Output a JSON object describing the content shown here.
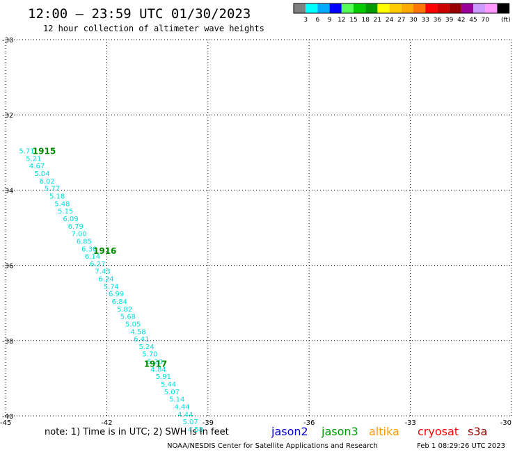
{
  "header": {
    "title": "12:00 – 23:59 UTC 01/30/2023",
    "subtitle": "12 hour collection of altimeter wave heights"
  },
  "colorbar": {
    "colors": [
      "#808080",
      "#00ffff",
      "#00aaff",
      "#0000ff",
      "#55ff55",
      "#00cc00",
      "#009900",
      "#ffff00",
      "#ffcc00",
      "#ffaa00",
      "#ff7700",
      "#ff0000",
      "#cc0000",
      "#990000",
      "#990099",
      "#cc99ff",
      "#ff99ff",
      "#000000"
    ],
    "labels": [
      "3",
      "6",
      "9",
      "12",
      "15",
      "18",
      "21",
      "24",
      "27",
      "30",
      "33",
      "36",
      "39",
      "42",
      "45",
      "70"
    ],
    "unit": "(ft)"
  },
  "chart_data": {
    "type": "scatter",
    "xlim": [
      -45,
      -30
    ],
    "ylim": [
      -40,
      -30
    ],
    "x_ticks": [
      -45,
      -42,
      -39,
      -36,
      -33,
      -30
    ],
    "y_ticks": [
      -30,
      -32,
      -34,
      -36,
      -38,
      -40
    ],
    "grid": true,
    "x_tick_labels": [
      "-45",
      "-42",
      "-39",
      "-36",
      "-33",
      "-30"
    ],
    "y_tick_labels": [
      "-30",
      "-32",
      "-34",
      "-36",
      "-38",
      "-40"
    ],
    "point_color": "#00dddd",
    "series": [
      {
        "values": [
          "5.71",
          "5.21",
          "4.67",
          "5.04",
          "6.02",
          "5.77",
          "5.18",
          "5.48",
          "5.15",
          "6.09",
          "6.79",
          "7.00",
          "6.85",
          "6.30",
          "6.14",
          "6.27",
          "7.43",
          "6.24",
          "5.74",
          "6.99",
          "6.84",
          "5.82",
          "5.68",
          "5.05",
          "4.58",
          "6.41",
          "5.24",
          "5.70",
          "5.20",
          "4.84",
          "5.91",
          "5.44",
          "5.07",
          "5.14",
          "4.44",
          "4.44",
          "5.07",
          "4.58"
        ],
        "x": [
          -44.6,
          -44.4,
          -44.3,
          -44.15,
          -44.0,
          -43.85,
          -43.7,
          -43.55,
          -43.45,
          -43.3,
          -43.15,
          -43.05,
          -42.9,
          -42.75,
          -42.65,
          -42.5,
          -42.35,
          -42.25,
          -42.1,
          -41.95,
          -41.85,
          -41.7,
          -41.6,
          -41.45,
          -41.3,
          -41.2,
          -41.05,
          -40.95,
          -40.8,
          -40.7,
          -40.55,
          -40.4,
          -40.3,
          -40.15,
          -40.0,
          -39.9,
          -39.75,
          -39.6
        ],
        "y": [
          -32.95,
          -33.15,
          -33.35,
          -33.55,
          -33.75,
          -33.95,
          -34.15,
          -34.35,
          -34.55,
          -34.75,
          -34.95,
          -35.15,
          -35.35,
          -35.55,
          -35.75,
          -35.95,
          -36.15,
          -36.35,
          -36.55,
          -36.75,
          -36.95,
          -37.15,
          -37.35,
          -37.55,
          -37.75,
          -37.95,
          -38.15,
          -38.35,
          -38.55,
          -38.75,
          -38.95,
          -39.15,
          -39.35,
          -39.55,
          -39.75,
          -39.95,
          -40.15,
          -40.35
        ]
      }
    ],
    "annotations": [
      {
        "text": "1915",
        "x": -44.2,
        "y": -32.95,
        "color": "#008800"
      },
      {
        "text": "1916",
        "x": -42.4,
        "y": -35.6,
        "color": "#008800"
      },
      {
        "text": "1917",
        "x": -40.9,
        "y": -38.6,
        "color": "#008800"
      }
    ]
  },
  "note": "note:  1) Time is in UTC; 2) SWH is in feet",
  "satellites": [
    {
      "name": "jason2",
      "color": "#0000cc"
    },
    {
      "name": "jason3",
      "color": "#009900"
    },
    {
      "name": "altika",
      "color": "#ff9900"
    },
    {
      "name": "cryosat",
      "color": "#ff0000"
    },
    {
      "name": "s3a",
      "color": "#990000"
    }
  ],
  "footer": {
    "credit": "NOAA/NESDIS Center for Satellite Applications and Research",
    "timestamp": "Feb  1 08:29:26 UTC 2023"
  }
}
